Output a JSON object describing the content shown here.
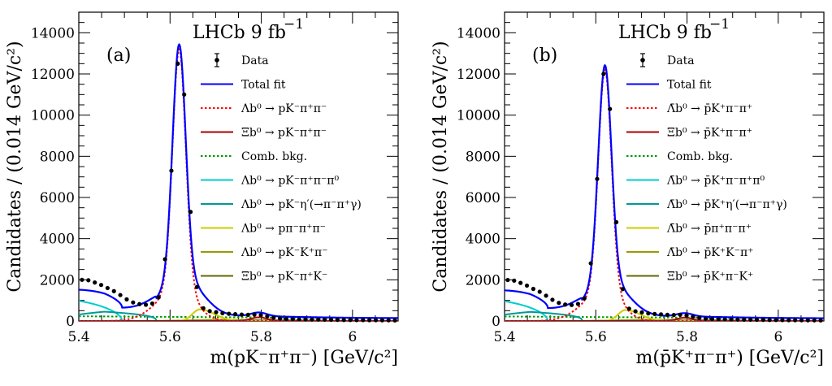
{
  "chart_data": [
    {
      "type": "line",
      "panel_label": "(a)",
      "experiment_label": "LHCb 9 fb",
      "experiment_sup": "−1",
      "xlabel": "m(pK⁻π⁺π⁻) [GeV/c²]",
      "ylabel": "Candidates / (0.014 GeV/c²)",
      "xlim": [
        5.4,
        6.1
      ],
      "ylim": [
        0,
        15000
      ],
      "x_ticks": [
        5.4,
        5.6,
        5.8,
        6
      ],
      "x_tick_labels": [
        "5.4",
        "5.6",
        "5.8",
        "6"
      ],
      "y_ticks": [
        0,
        2000,
        4000,
        6000,
        8000,
        10000,
        12000,
        14000
      ],
      "y_tick_labels": [
        "0",
        "2000",
        "4000",
        "6000",
        "8000",
        "10000",
        "12000",
        "14000"
      ],
      "grid": false,
      "legend_position": "right",
      "data": {
        "name": "Data",
        "x": [
          5.407,
          5.421,
          5.435,
          5.449,
          5.463,
          5.477,
          5.491,
          5.505,
          5.519,
          5.533,
          5.547,
          5.561,
          5.575,
          5.589,
          5.603,
          5.617,
          5.631,
          5.645,
          5.659,
          5.673,
          5.687,
          5.701,
          5.715,
          5.729,
          5.743,
          5.757,
          5.771,
          5.785,
          5.799,
          5.813,
          5.827,
          5.841,
          5.855,
          5.869,
          5.883,
          5.897,
          5.911,
          5.925,
          5.939,
          5.953,
          5.967,
          5.981,
          5.995,
          6.009,
          6.023,
          6.037,
          6.051,
          6.065,
          6.079,
          6.093
        ],
        "y": [
          2000,
          1980,
          1870,
          1750,
          1600,
          1450,
          1260,
          1050,
          900,
          820,
          790,
          850,
          1150,
          3000,
          7300,
          12500,
          11000,
          5300,
          1650,
          620,
          480,
          430,
          380,
          350,
          330,
          310,
          300,
          310,
          290,
          230,
          160,
          120,
          100,
          90,
          80,
          75,
          70,
          70,
          65,
          60,
          55,
          50,
          48,
          45,
          42,
          40,
          38,
          35,
          33,
          30
        ]
      },
      "curves": [
        {
          "name": "Total fit",
          "color": "#0000ff",
          "role": "total",
          "width": 2.2,
          "dash": "none"
        },
        {
          "name": "Λb⁰ → pK⁻π⁺π⁻",
          "color": "#ff0000",
          "role": "signal_lambda",
          "width": 2,
          "dash": "2.5,2.5"
        },
        {
          "name": "Ξb⁰ → pK⁻π⁺π⁻",
          "color": "#aa0000",
          "role": "signal_xi",
          "width": 2,
          "dash": "none"
        },
        {
          "name": "Comb. bkg.",
          "color": "#009900",
          "role": "comb",
          "width": 2,
          "dash": "2.5,2.5"
        },
        {
          "name": "Λb⁰ → pK⁻π⁺π⁻π⁰",
          "color": "#00cccc",
          "role": "pi0",
          "width": 2,
          "dash": "none"
        },
        {
          "name": "Λb⁰ → pK⁻η′(→π⁻π⁺γ)",
          "color": "#009999",
          "role": "etap",
          "width": 2,
          "dash": "none"
        },
        {
          "name": "Λb⁰ → pπ⁻π⁺π⁻",
          "color": "#cccc00",
          "role": "misid_pi",
          "width": 2,
          "dash": "none"
        },
        {
          "name": "Λb⁰ → pK⁻K⁺π⁻",
          "color": "#999900",
          "role": "misid_kk",
          "width": 2,
          "dash": "none"
        },
        {
          "name": "Ξb⁰ → pK⁻π⁺K⁻",
          "color": "#666600",
          "role": "misid_xik",
          "width": 2,
          "dash": "none"
        }
      ],
      "legend": [
        {
          "symbol": "data",
          "color": "#000000",
          "label": "Data"
        },
        {
          "symbol": "solid",
          "color": "#0000ff",
          "label": "Total fit"
        },
        {
          "symbol": "dashed",
          "color": "#ff0000",
          "label": "Λb⁰ → pK⁻π⁺π⁻"
        },
        {
          "symbol": "solid",
          "color": "#aa0000",
          "label": "Ξb⁰ → pK⁻π⁺π⁻"
        },
        {
          "symbol": "dashed",
          "color": "#009900",
          "label": "Comb. bkg."
        },
        {
          "symbol": "solid",
          "color": "#00cccc",
          "label": "Λb⁰ → pK⁻π⁺π⁻π⁰"
        },
        {
          "symbol": "solid",
          "color": "#009999",
          "label": "Λb⁰ → pK⁻η′(→π⁻π⁺γ)"
        },
        {
          "symbol": "solid",
          "color": "#cccc00",
          "label": "Λb⁰ → pπ⁻π⁺π⁻"
        },
        {
          "symbol": "solid",
          "color": "#999900",
          "label": "Λb⁰ → pK⁻K⁺π⁻"
        },
        {
          "symbol": "solid",
          "color": "#666600",
          "label": "Ξb⁰ → pK⁻π⁺K⁻"
        }
      ],
      "components": {
        "signal_lambda": {
          "mean": 5.62,
          "sigma": 0.0145,
          "amp": 13200,
          "tail": 0.12
        },
        "signal_xi": {
          "mean": 5.795,
          "sigma": 0.0145,
          "amp": 180,
          "tail": 0.05
        },
        "comb": {
          "amp": 230,
          "slope": 0.7
        },
        "pi0": {
          "amp": 1150,
          "end": 5.495
        },
        "etap": {
          "amp": 520,
          "end": 5.57
        },
        "misid_pi": {
          "mean": 5.665,
          "sigma": 0.02,
          "amp": 560
        },
        "misid_kk": {
          "mean": 5.72,
          "sigma": 0.03,
          "amp": 60
        },
        "misid_xik": {
          "mean": 5.85,
          "sigma": 0.04,
          "amp": 30
        }
      }
    },
    {
      "type": "line",
      "panel_label": "(b)",
      "experiment_label": "LHCb 9 fb",
      "experiment_sup": "−1",
      "xlabel": "m(p̄K⁺π⁻π⁺) [GeV/c²]",
      "ylabel": "Candidates / (0.014 GeV/c²)",
      "xlim": [
        5.4,
        6.1
      ],
      "ylim": [
        0,
        15000
      ],
      "x_ticks": [
        5.4,
        5.6,
        5.8,
        6
      ],
      "x_tick_labels": [
        "5.4",
        "5.6",
        "5.8",
        "6"
      ],
      "y_ticks": [
        0,
        2000,
        4000,
        6000,
        8000,
        10000,
        12000,
        14000
      ],
      "y_tick_labels": [
        "0",
        "2000",
        "4000",
        "6000",
        "8000",
        "10000",
        "12000",
        "14000"
      ],
      "grid": false,
      "legend_position": "right",
      "data": {
        "name": "Data",
        "x": [
          5.407,
          5.421,
          5.435,
          5.449,
          5.463,
          5.477,
          5.491,
          5.505,
          5.519,
          5.533,
          5.547,
          5.561,
          5.575,
          5.589,
          5.603,
          5.617,
          5.631,
          5.645,
          5.659,
          5.673,
          5.687,
          5.701,
          5.715,
          5.729,
          5.743,
          5.757,
          5.771,
          5.785,
          5.799,
          5.813,
          5.827,
          5.841,
          5.855,
          5.869,
          5.883,
          5.897,
          5.911,
          5.925,
          5.939,
          5.953,
          5.967,
          5.981,
          5.995,
          6.009,
          6.023,
          6.037,
          6.051,
          6.065,
          6.079,
          6.093
        ],
        "y": [
          1990,
          1960,
          1850,
          1720,
          1560,
          1420,
          1230,
          1030,
          880,
          800,
          780,
          830,
          1100,
          2800,
          6900,
          12000,
          10300,
          4800,
          1550,
          600,
          470,
          420,
          370,
          340,
          320,
          300,
          290,
          300,
          270,
          210,
          150,
          110,
          95,
          85,
          78,
          72,
          68,
          65,
          62,
          58,
          54,
          50,
          46,
          43,
          40,
          38,
          36,
          33,
          31,
          29
        ]
      },
      "curves": [
        {
          "name": "Total fit",
          "color": "#0000ff",
          "role": "total",
          "width": 2.2,
          "dash": "none"
        },
        {
          "name": "Λ̄b⁰ → p̄K⁺π⁻π⁺",
          "color": "#ff0000",
          "role": "signal_lambda",
          "width": 2,
          "dash": "2.5,2.5"
        },
        {
          "name": "Ξ̄b⁰ → p̄K⁺π⁻π⁺",
          "color": "#aa0000",
          "role": "signal_xi",
          "width": 2,
          "dash": "none"
        },
        {
          "name": "Comb. bkg.",
          "color": "#009900",
          "role": "comb",
          "width": 2,
          "dash": "2.5,2.5"
        },
        {
          "name": "Λ̄b⁰ → p̄K⁺π⁻π⁺π⁰",
          "color": "#00cccc",
          "role": "pi0",
          "width": 2,
          "dash": "none"
        },
        {
          "name": "Λ̄b⁰ → p̄K⁺η′(→π⁻π⁺γ)",
          "color": "#009999",
          "role": "etap",
          "width": 2,
          "dash": "none"
        },
        {
          "name": "Λ̄b⁰ → p̄π⁺π⁻π⁺",
          "color": "#cccc00",
          "role": "misid_pi",
          "width": 2,
          "dash": "none"
        },
        {
          "name": "Λ̄b⁰ → p̄K⁺K⁻π⁺",
          "color": "#999900",
          "role": "misid_kk",
          "width": 2,
          "dash": "none"
        },
        {
          "name": "Ξ̄b⁰ → p̄K⁺π⁻K⁺",
          "color": "#666600",
          "role": "misid_xik",
          "width": 2,
          "dash": "none"
        }
      ],
      "legend": [
        {
          "symbol": "data",
          "color": "#000000",
          "label": "Data"
        },
        {
          "symbol": "solid",
          "color": "#0000ff",
          "label": "Total fit"
        },
        {
          "symbol": "dashed",
          "color": "#ff0000",
          "label": "Λ̄b⁰ → p̄K⁺π⁻π⁺"
        },
        {
          "symbol": "solid",
          "color": "#aa0000",
          "label": "Ξ̄b⁰ → p̄K⁺π⁻π⁺"
        },
        {
          "symbol": "dashed",
          "color": "#009900",
          "label": "Comb. bkg."
        },
        {
          "symbol": "solid",
          "color": "#00cccc",
          "label": "Λ̄b⁰ → p̄K⁺π⁻π⁺π⁰"
        },
        {
          "symbol": "solid",
          "color": "#009999",
          "label": "Λ̄b⁰ → p̄K⁺η′(→π⁻π⁺γ)"
        },
        {
          "symbol": "solid",
          "color": "#cccc00",
          "label": "Λ̄b⁰ → p̄π⁺π⁻π⁺"
        },
        {
          "symbol": "solid",
          "color": "#999900",
          "label": "Λ̄b⁰ → p̄K⁺K⁻π⁺"
        },
        {
          "symbol": "solid",
          "color": "#666600",
          "label": "Ξ̄b⁰ → p̄K⁺π⁻K⁺"
        }
      ],
      "components": {
        "signal_lambda": {
          "mean": 5.62,
          "sigma": 0.0145,
          "amp": 12200,
          "tail": 0.12
        },
        "signal_xi": {
          "mean": 5.795,
          "sigma": 0.0145,
          "amp": 160,
          "tail": 0.05
        },
        "comb": {
          "amp": 220,
          "slope": 0.7
        },
        "pi0": {
          "amp": 1130,
          "end": 5.495
        },
        "etap": {
          "amp": 510,
          "end": 5.57
        },
        "misid_pi": {
          "mean": 5.665,
          "sigma": 0.02,
          "amp": 530
        },
        "misid_kk": {
          "mean": 5.72,
          "sigma": 0.03,
          "amp": 55
        },
        "misid_xik": {
          "mean": 5.85,
          "sigma": 0.04,
          "amp": 28
        }
      }
    }
  ]
}
